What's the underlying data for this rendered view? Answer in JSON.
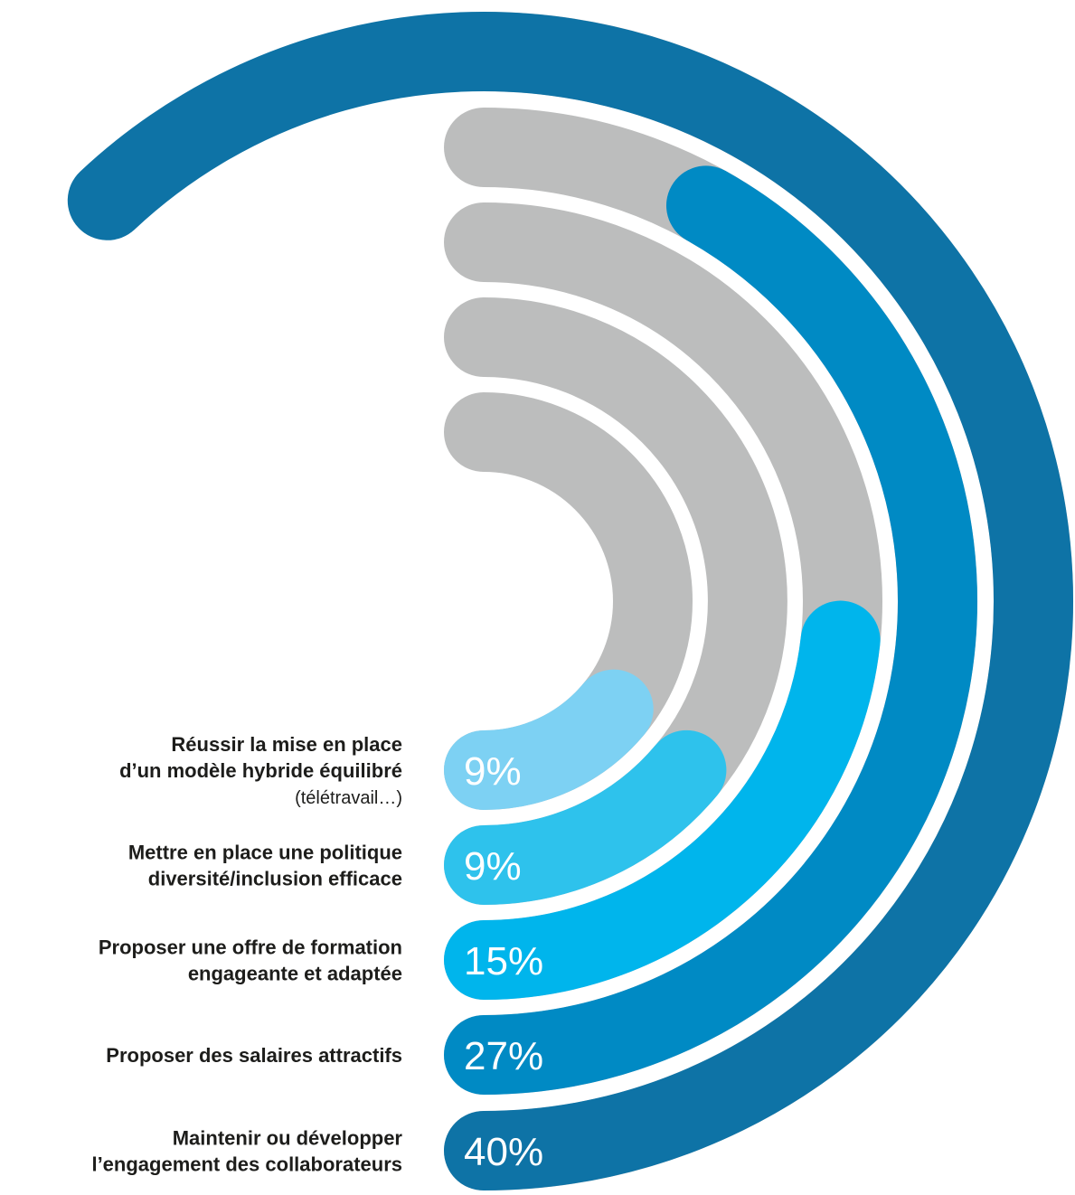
{
  "chart_data": {
    "type": "radial-bar",
    "value_suffix": "%",
    "track_color": "#bcbdbd",
    "series": [
      {
        "label_lines": [
          "Réussir la mise en place",
          "d’un modèle hybride équilibré"
        ],
        "sublabel": "(télétravail…)",
        "value": 9,
        "value_label": "9%",
        "color": "#7dd1f3"
      },
      {
        "label_lines": [
          "Mettre en place une politique",
          "diversité/inclusion efficace"
        ],
        "sublabel": "",
        "value": 9,
        "value_label": "9%",
        "color": "#2ec2ec"
      },
      {
        "label_lines": [
          "Proposer une offre de formation",
          "engageante et adaptée"
        ],
        "sublabel": "",
        "value": 15,
        "value_label": "15%",
        "color": "#00b5ec"
      },
      {
        "label_lines": [
          "Proposer des salaires attractifs"
        ],
        "sublabel": "",
        "value": 27,
        "value_label": "27%",
        "color": "#008ac4"
      },
      {
        "label_lines": [
          "Maintenir ou développer",
          "l’engagement des collaborateurs"
        ],
        "sublabel": "",
        "value": 40,
        "value_label": "40%",
        "color": "#0e73a6"
      }
    ]
  }
}
